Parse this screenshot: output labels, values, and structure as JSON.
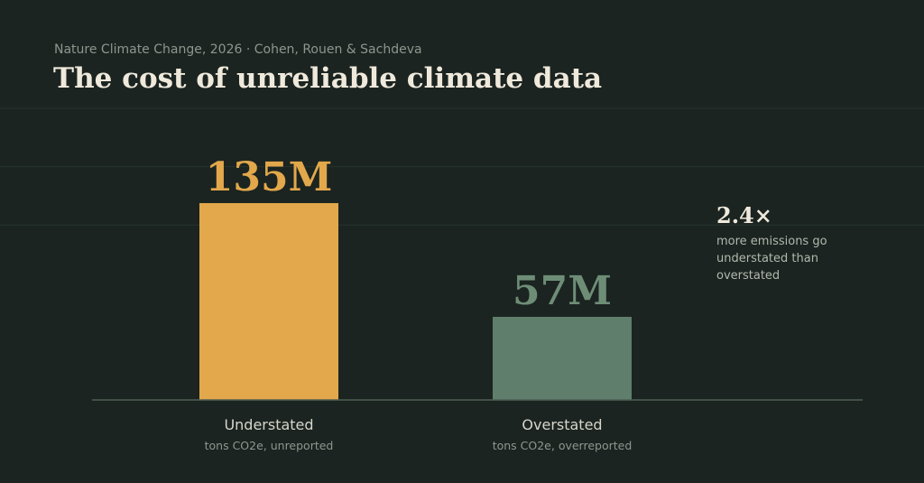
{
  "header": {
    "source": "Nature Climate Change, 2026 · Cohen, Rouen & Sachdeva",
    "title": "The cost of unreliable climate data"
  },
  "callout": {
    "value": "2.4×",
    "text": "more emissions go understated than overstated"
  },
  "colors": {
    "background": "#1b2420",
    "understated": "#e2a84b",
    "overstated": "#5f7e6b",
    "overstated_label": "#6e8d77",
    "baseline": "#4f5e56",
    "gridline": "#28322d"
  },
  "chart_data": {
    "type": "bar",
    "categories": [
      "Understated",
      "Overstated"
    ],
    "subtitles": [
      "tons CO2e, unreported",
      "tons CO2e, overreported"
    ],
    "values": [
      135,
      57
    ],
    "value_labels": [
      "135M",
      "57M"
    ],
    "unit": "M tons CO2e",
    "ylim": [
      0,
      200
    ],
    "grid": true
  }
}
